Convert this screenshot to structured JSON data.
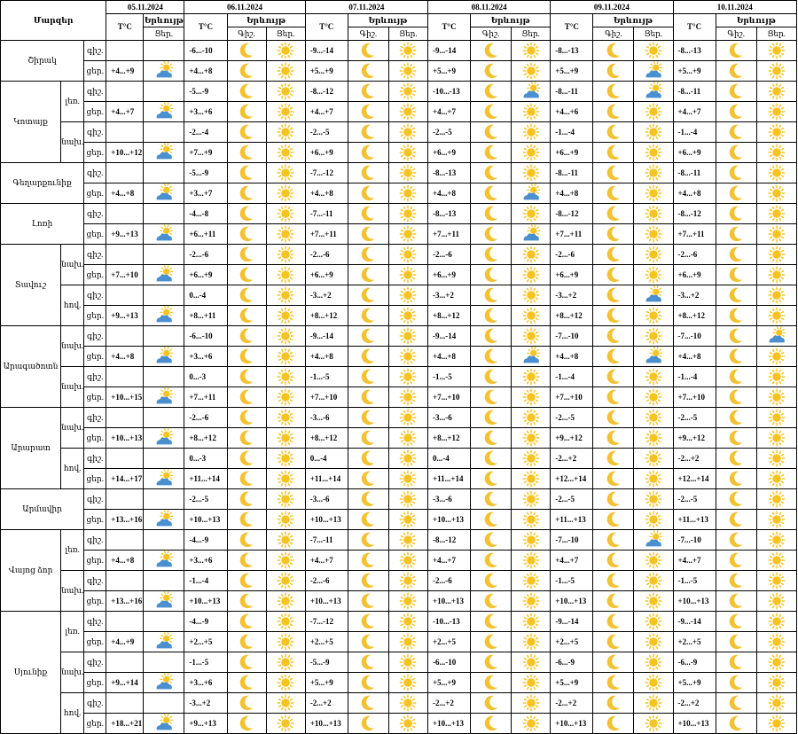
{
  "header": {
    "region_label": "Մարզեր",
    "dates": [
      "05.11.2024",
      "06.11.2024",
      "07.11.2024",
      "08.11.2024",
      "09.11.2024",
      "10.11.2024"
    ],
    "temp_label": "T°C",
    "phenomena_label": "Երևույթ",
    "day_label": "Ցեր.",
    "night_label": "Գիշ."
  },
  "colors": {
    "border": "#000000",
    "sun": "#f7c321",
    "moon": "#f2c232",
    "cloud": "#4a8fd0"
  },
  "rows": [
    {
      "region": "Շիրակ",
      "sub": "",
      "tod": "գիշ.",
      "start": true,
      "region_span": 2,
      "sub_span": 1,
      "d0": "",
      "d0i": "",
      "t": [
        "-6...-10",
        "-9...-14",
        "-9...-14",
        "-8...-13",
        "-8...-13"
      ],
      "ic": [
        [
          "moon",
          "sun"
        ],
        [
          "moon",
          "sun"
        ],
        [
          "moon",
          "sun"
        ],
        [
          "moon",
          "sun"
        ],
        [
          "moon",
          "sun"
        ]
      ]
    },
    {
      "region": "",
      "sub": "",
      "tod": "ցեր.",
      "d0": "+4...+9",
      "d0i": "sun-cloud",
      "t": [
        "+4...+8",
        "+5...+9",
        "+5...+9",
        "+5...+9",
        "+5...+9"
      ],
      "ic": [
        [
          "moon",
          "sun"
        ],
        [
          "moon",
          "sun"
        ],
        [
          "moon",
          "sun"
        ],
        [
          "moon",
          "sun-cloud"
        ],
        [
          "moon",
          "sun"
        ]
      ]
    },
    {
      "region": "Կոտայք",
      "sub": "լեռ.",
      "tod": "գիշ.",
      "start": true,
      "region_span": 4,
      "sub_span": 2,
      "d0": "",
      "d0i": "",
      "t": [
        "-5...-9",
        "-8...-12",
        "-10...-13",
        "-8...-11",
        "-8...-11"
      ],
      "ic": [
        [
          "moon",
          "sun"
        ],
        [
          "moon",
          "sun"
        ],
        [
          "moon",
          "sun-cloud"
        ],
        [
          "moon",
          "sun-cloud"
        ],
        [
          "moon",
          "sun"
        ]
      ]
    },
    {
      "region": "",
      "sub": "",
      "tod": "ցեր.",
      "d0": "+4...+7",
      "d0i": "sun-cloud",
      "t": [
        "+3...+6",
        "+4...+7",
        "+4...+7",
        "+4...+6",
        "+4...+7"
      ],
      "ic": [
        [
          "moon",
          "sun"
        ],
        [
          "moon",
          "sun"
        ],
        [
          "moon",
          "sun"
        ],
        [
          "moon",
          "sun"
        ],
        [
          "moon",
          "sun"
        ]
      ]
    },
    {
      "region": "",
      "sub": "նախ.",
      "tod": "գիշ.",
      "sub_span": 2,
      "d0": "",
      "d0i": "",
      "t": [
        "-2...-4",
        "-2...-5",
        "-2...-5",
        "-1...-4",
        "-1...-4"
      ],
      "ic": [
        [
          "moon",
          "sun"
        ],
        [
          "moon",
          "sun"
        ],
        [
          "moon",
          "sun"
        ],
        [
          "moon",
          "sun"
        ],
        [
          "moon",
          "sun"
        ]
      ]
    },
    {
      "region": "",
      "sub": "",
      "tod": "ցեր.",
      "d0": "+10...+12",
      "d0i": "sun-cloud",
      "t": [
        "+7...+9",
        "+6...+9",
        "+6...+9",
        "+6...+9",
        "+6...+9"
      ],
      "ic": [
        [
          "moon",
          "sun"
        ],
        [
          "moon",
          "sun"
        ],
        [
          "moon",
          "sun"
        ],
        [
          "moon",
          "sun"
        ],
        [
          "moon",
          "sun"
        ]
      ]
    },
    {
      "region": "Գեղարքունիք",
      "sub": "",
      "tod": "գիշ.",
      "start": true,
      "region_span": 2,
      "sub_span": 1,
      "d0": "",
      "d0i": "",
      "t": [
        "-5...-9",
        "-7...-12",
        "-8...-13",
        "-8...-11",
        "-8...-11"
      ],
      "ic": [
        [
          "moon",
          "sun"
        ],
        [
          "moon",
          "sun"
        ],
        [
          "moon",
          "sun"
        ],
        [
          "moon",
          "sun"
        ],
        [
          "moon",
          "sun"
        ]
      ]
    },
    {
      "region": "",
      "sub": "",
      "tod": "ցեր.",
      "d0": "+4...+8",
      "d0i": "sun-cloud",
      "t": [
        "+3...+7",
        "+4...+8",
        "+4...+8",
        "+4...+8",
        "+4...+8"
      ],
      "ic": [
        [
          "moon",
          "sun"
        ],
        [
          "moon",
          "sun"
        ],
        [
          "moon",
          "sun-cloud"
        ],
        [
          "moon",
          "sun"
        ],
        [
          "moon",
          "sun"
        ]
      ]
    },
    {
      "region": "Լոռի",
      "sub": "",
      "tod": "գիշ.",
      "start": true,
      "region_span": 2,
      "sub_span": 1,
      "d0": "",
      "d0i": "",
      "t": [
        "-4...-8",
        "-7...-11",
        "-8...-13",
        "-8...-12",
        "-8...-12"
      ],
      "ic": [
        [
          "moon",
          "sun"
        ],
        [
          "moon",
          "sun"
        ],
        [
          "moon",
          "sun"
        ],
        [
          "moon",
          "sun"
        ],
        [
          "moon",
          "sun"
        ]
      ]
    },
    {
      "region": "",
      "sub": "",
      "tod": "ցեր.",
      "d0": "+9...+13",
      "d0i": "sun-cloud",
      "t": [
        "+6...+11",
        "+7...+11",
        "+7...+11",
        "+7...+11",
        "+7...+11"
      ],
      "ic": [
        [
          "moon",
          "sun"
        ],
        [
          "moon",
          "sun"
        ],
        [
          "moon",
          "sun-cloud"
        ],
        [
          "moon",
          "sun"
        ],
        [
          "moon",
          "sun"
        ]
      ]
    },
    {
      "region": "Տավուշ",
      "sub": "նախ.",
      "tod": "գիշ.",
      "start": true,
      "region_span": 4,
      "sub_span": 2,
      "d0": "",
      "d0i": "",
      "t": [
        "-2...-6",
        "-2...-6",
        "-2...-6",
        "-2...-6",
        "-2...-6"
      ],
      "ic": [
        [
          "moon",
          "sun"
        ],
        [
          "moon",
          "sun"
        ],
        [
          "moon",
          "sun"
        ],
        [
          "moon",
          "sun"
        ],
        [
          "moon",
          "sun"
        ]
      ]
    },
    {
      "region": "",
      "sub": "",
      "tod": "ցեր.",
      "d0": "+7...+10",
      "d0i": "sun-cloud",
      "t": [
        "+6...+9",
        "+6...+9",
        "+6...+9",
        "+6...+9",
        "+6...+9"
      ],
      "ic": [
        [
          "moon",
          "sun"
        ],
        [
          "moon",
          "sun"
        ],
        [
          "moon",
          "sun"
        ],
        [
          "moon",
          "sun"
        ],
        [
          "moon",
          "sun"
        ]
      ]
    },
    {
      "region": "",
      "sub": "հով.",
      "tod": "գիշ.",
      "sub_span": 2,
      "d0": "",
      "d0i": "",
      "t": [
        "0...-4",
        "-3...+2",
        "-3...+2",
        "-3...+2",
        "-3...+2"
      ],
      "ic": [
        [
          "moon",
          "sun"
        ],
        [
          "moon",
          "sun"
        ],
        [
          "moon",
          "sun"
        ],
        [
          "moon",
          "sun-cloud"
        ],
        [
          "moon",
          "sun"
        ]
      ]
    },
    {
      "region": "",
      "sub": "",
      "tod": "ցեր.",
      "d0": "+9...+13",
      "d0i": "sun-cloud",
      "t": [
        "+8...+11",
        "+8...+12",
        "+8...+12",
        "+8...+12",
        "+8...+12"
      ],
      "ic": [
        [
          "moon",
          "sun"
        ],
        [
          "moon",
          "sun"
        ],
        [
          "moon",
          "sun"
        ],
        [
          "moon",
          "sun"
        ],
        [
          "moon",
          "sun"
        ]
      ]
    },
    {
      "region": "Արագածոտն",
      "sub": "նախ.",
      "tod": "գիշ.",
      "start": true,
      "region_span": 4,
      "sub_span": 2,
      "d0": "",
      "d0i": "",
      "t": [
        "-6...-10",
        "-9...-14",
        "-9...-14",
        "-7...-10",
        "-7...-10"
      ],
      "ic": [
        [
          "moon",
          "sun"
        ],
        [
          "moon",
          "sun"
        ],
        [
          "moon",
          "sun"
        ],
        [
          "moon",
          "sun"
        ],
        [
          "moon",
          "sun-cloud"
        ]
      ]
    },
    {
      "region": "",
      "sub": "",
      "tod": "ցեր.",
      "d0": "+4...+8",
      "d0i": "sun-cloud",
      "t": [
        "+3...+6",
        "+4...+8",
        "+4...+8",
        "+4...+8",
        "+4...+8"
      ],
      "ic": [
        [
          "moon",
          "sun"
        ],
        [
          "moon",
          "sun"
        ],
        [
          "moon",
          "sun-cloud"
        ],
        [
          "moon",
          "sun-cloud"
        ],
        [
          "moon",
          "sun"
        ]
      ]
    },
    {
      "region": "",
      "sub": "նախ.",
      "tod": "գիշ.",
      "sub_span": 2,
      "d0": "",
      "d0i": "",
      "t": [
        "0...-3",
        "-1...-5",
        "-1...-5",
        "-1...-4",
        "-1...-4"
      ],
      "ic": [
        [
          "moon",
          "sun"
        ],
        [
          "moon",
          "sun"
        ],
        [
          "moon",
          "sun"
        ],
        [
          "moon",
          "sun"
        ],
        [
          "moon",
          "sun"
        ]
      ]
    },
    {
      "region": "",
      "sub": "",
      "tod": "ցեր.",
      "d0": "+10...+15",
      "d0i": "sun-cloud",
      "t": [
        "+7...+11",
        "+7...+10",
        "+7...+10",
        "+7...+10",
        "+7...+10"
      ],
      "ic": [
        [
          "moon",
          "sun"
        ],
        [
          "moon",
          "sun"
        ],
        [
          "moon",
          "sun"
        ],
        [
          "moon",
          "sun"
        ],
        [
          "moon",
          "sun"
        ]
      ]
    },
    {
      "region": "Արարատ",
      "sub": "նախ.",
      "tod": "գիշ.",
      "start": true,
      "region_span": 4,
      "sub_span": 2,
      "d0": "",
      "d0i": "",
      "t": [
        "-2...-6",
        "-3...-6",
        "-3...-6",
        "-2...-5",
        "-2...-5"
      ],
      "ic": [
        [
          "moon",
          "sun"
        ],
        [
          "moon",
          "sun"
        ],
        [
          "moon",
          "sun"
        ],
        [
          "moon",
          "sun"
        ],
        [
          "moon",
          "sun"
        ]
      ]
    },
    {
      "region": "",
      "sub": "",
      "tod": "ցեր.",
      "d0": "+10...+13",
      "d0i": "sun-cloud",
      "t": [
        "+8...+12",
        "+8...+12",
        "+8...+12",
        "+9...+12",
        "+9...+12"
      ],
      "ic": [
        [
          "moon",
          "sun"
        ],
        [
          "moon",
          "sun"
        ],
        [
          "moon",
          "sun"
        ],
        [
          "moon",
          "sun"
        ],
        [
          "moon",
          "sun"
        ]
      ]
    },
    {
      "region": "",
      "sub": "հով.",
      "tod": "գիշ.",
      "sub_span": 2,
      "d0": "",
      "d0i": "",
      "t": [
        "0...-3",
        "0...-4",
        "0...-4",
        "-2...+2",
        "-2...+2"
      ],
      "ic": [
        [
          "moon",
          "sun"
        ],
        [
          "moon",
          "sun"
        ],
        [
          "moon",
          "sun"
        ],
        [
          "moon",
          "sun"
        ],
        [
          "moon",
          "sun"
        ]
      ]
    },
    {
      "region": "",
      "sub": "",
      "tod": "ցեր.",
      "d0": "+14...+17",
      "d0i": "sun-cloud",
      "t": [
        "+11...+14",
        "+11...+14",
        "+11...+14",
        "+12...+14",
        "+12...+14"
      ],
      "ic": [
        [
          "moon",
          "sun"
        ],
        [
          "moon",
          "sun"
        ],
        [
          "moon",
          "sun"
        ],
        [
          "moon",
          "sun"
        ],
        [
          "moon",
          "sun"
        ]
      ]
    },
    {
      "region": "Արմավիր",
      "sub": "",
      "tod": "գիշ.",
      "start": true,
      "region_span": 2,
      "sub_span": 1,
      "d0": "",
      "d0i": "",
      "t": [
        "-2...-5",
        "-3...-6",
        "-3...-6",
        "-2...-5",
        "-2...-5"
      ],
      "ic": [
        [
          "moon",
          "sun"
        ],
        [
          "moon",
          "sun"
        ],
        [
          "moon",
          "sun"
        ],
        [
          "moon",
          "sun"
        ],
        [
          "moon",
          "sun"
        ]
      ]
    },
    {
      "region": "",
      "sub": "",
      "tod": "ցեր.",
      "d0": "+13...+16",
      "d0i": "sun-cloud",
      "t": [
        "+10...+13",
        "+10...+13",
        "+10...+13",
        "+11...+13",
        "+11...+13"
      ],
      "ic": [
        [
          "moon",
          "sun"
        ],
        [
          "moon",
          "sun"
        ],
        [
          "moon",
          "sun"
        ],
        [
          "moon",
          "sun"
        ],
        [
          "moon",
          "sun"
        ]
      ]
    },
    {
      "region": "Վայոց ձոր",
      "sub": "լեռ.",
      "tod": "գիշ.",
      "start": true,
      "region_span": 4,
      "sub_span": 2,
      "d0": "",
      "d0i": "",
      "t": [
        "-4...-9",
        "-7...-11",
        "-8...-12",
        "-7...-10",
        "-7...-10"
      ],
      "ic": [
        [
          "moon",
          "sun"
        ],
        [
          "moon",
          "sun"
        ],
        [
          "moon",
          "sun"
        ],
        [
          "moon",
          "sun-cloud"
        ],
        [
          "moon",
          "sun"
        ]
      ]
    },
    {
      "region": "",
      "sub": "",
      "tod": "ցեր.",
      "d0": "+4...+8",
      "d0i": "sun-cloud",
      "t": [
        "+3...+6",
        "+4...+7",
        "+4...+7",
        "+4...+7",
        "+4...+7"
      ],
      "ic": [
        [
          "moon",
          "sun"
        ],
        [
          "moon",
          "sun"
        ],
        [
          "moon",
          "sun"
        ],
        [
          "moon",
          "sun"
        ],
        [
          "moon",
          "sun"
        ]
      ]
    },
    {
      "region": "",
      "sub": "նախ.",
      "tod": "գիշ.",
      "sub_span": 2,
      "d0": "",
      "d0i": "",
      "t": [
        "-1...-4",
        "-2...-6",
        "-2...-6",
        "-1...-5",
        "-1...-5"
      ],
      "ic": [
        [
          "moon",
          "sun"
        ],
        [
          "moon",
          "sun"
        ],
        [
          "moon",
          "sun"
        ],
        [
          "moon",
          "sun"
        ],
        [
          "moon",
          "sun"
        ]
      ]
    },
    {
      "region": "",
      "sub": "",
      "tod": "ցեր.",
      "d0": "+13...+16",
      "d0i": "sun-cloud",
      "t": [
        "+10...+13",
        "+10...+13",
        "+10...+13",
        "+10...+13",
        "+10...+13"
      ],
      "ic": [
        [
          "moon",
          "sun"
        ],
        [
          "moon",
          "sun"
        ],
        [
          "moon",
          "sun"
        ],
        [
          "moon",
          "sun"
        ],
        [
          "moon",
          "sun"
        ]
      ]
    },
    {
      "region": "Սյունիք",
      "sub": "լեռ.",
      "tod": "գիշ.",
      "start": true,
      "region_span": 6,
      "sub_span": 2,
      "d0": "",
      "d0i": "",
      "t": [
        "-4...-9",
        "-7...-12",
        "-10...-13",
        "-9...-14",
        "-9...-14"
      ],
      "ic": [
        [
          "moon",
          "sun"
        ],
        [
          "moon",
          "sun"
        ],
        [
          "moon",
          "sun"
        ],
        [
          "moon",
          "sun"
        ],
        [
          "moon",
          "sun"
        ]
      ]
    },
    {
      "region": "",
      "sub": "",
      "tod": "ցեր.",
      "d0": "+4...+9",
      "d0i": "sun-cloud",
      "t": [
        "+2...+5",
        "+2...+5",
        "+2...+5",
        "+2...+5",
        "+2...+5"
      ],
      "ic": [
        [
          "moon",
          "sun"
        ],
        [
          "moon",
          "sun"
        ],
        [
          "moon",
          "sun"
        ],
        [
          "moon",
          "sun"
        ],
        [
          "moon",
          "sun"
        ]
      ]
    },
    {
      "region": "",
      "sub": "նախ.",
      "tod": "գիշ.",
      "sub_span": 2,
      "d0": "",
      "d0i": "",
      "t": [
        "-1...-5",
        "-5...-9",
        "-6...-10",
        "-6...-9",
        "-6...-9"
      ],
      "ic": [
        [
          "moon",
          "sun"
        ],
        [
          "moon",
          "sun"
        ],
        [
          "moon",
          "sun"
        ],
        [
          "moon",
          "sun"
        ],
        [
          "moon",
          "sun"
        ]
      ]
    },
    {
      "region": "",
      "sub": "",
      "tod": "ցեր.",
      "d0": "+9...+14",
      "d0i": "sun-cloud",
      "t": [
        "+3...+6",
        "+5...+9",
        "+5...+9",
        "+5...+9",
        "+5...+9"
      ],
      "ic": [
        [
          "moon",
          "sun"
        ],
        [
          "moon",
          "sun"
        ],
        [
          "moon",
          "sun"
        ],
        [
          "moon",
          "sun"
        ],
        [
          "moon",
          "sun"
        ]
      ]
    },
    {
      "region": "",
      "sub": "հով.",
      "tod": "գիշ.",
      "sub_span": 2,
      "d0": "",
      "d0i": "",
      "t": [
        "-3...+2",
        "-2...+2",
        "-2...+2",
        "-2...+2",
        "-2...+2"
      ],
      "ic": [
        [
          "moon",
          "sun"
        ],
        [
          "moon",
          "sun"
        ],
        [
          "moon",
          "sun"
        ],
        [
          "moon",
          "sun"
        ],
        [
          "moon",
          "sun"
        ]
      ]
    },
    {
      "region": "",
      "sub": "",
      "tod": "ցեր.",
      "d0": "+18...+21",
      "d0i": "sun-cloud",
      "t": [
        "+9...+13",
        "+10...+13",
        "+10...+13",
        "+10...+13",
        "+10...+13"
      ],
      "ic": [
        [
          "moon",
          "sun"
        ],
        [
          "moon",
          "sun"
        ],
        [
          "moon",
          "sun"
        ],
        [
          "moon",
          "sun"
        ],
        [
          "moon",
          "sun"
        ]
      ]
    }
  ]
}
